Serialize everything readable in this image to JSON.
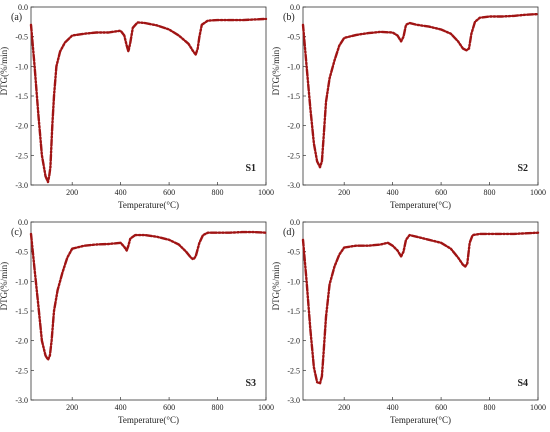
{
  "chart_data": [
    {
      "panel": "(a)",
      "sample": "S1",
      "type": "line",
      "xlabel": "Temperature(°C)",
      "ylabel": "DTG(%/min)",
      "xlim": [
        30,
        1000
      ],
      "ylim": [
        -3.0,
        0.0
      ],
      "xticks": [
        200,
        400,
        600,
        800,
        1000
      ],
      "yticks": [
        0.0,
        -0.5,
        -1.0,
        -1.5,
        -2.0,
        -2.5,
        -3.0
      ],
      "ytick_labels": [
        "0.0",
        "-0.5",
        "-1.0",
        "-1.5",
        "-2.0",
        "-2.5",
        "-3.0"
      ],
      "color": "#a01414",
      "series": [
        {
          "x": [
            30,
            45,
            60,
            75,
            90,
            100,
            105,
            110,
            118,
            125,
            135,
            150,
            170,
            200,
            250,
            300,
            350,
            400,
            415,
            425,
            432,
            440,
            450,
            470,
            500,
            550,
            600,
            640,
            680,
            700,
            710,
            718,
            725,
            735,
            760,
            800,
            900,
            1000
          ],
          "y": [
            -0.3,
            -1.0,
            -1.8,
            -2.5,
            -2.85,
            -2.95,
            -2.85,
            -2.7,
            -2.0,
            -1.5,
            -1.0,
            -0.75,
            -0.6,
            -0.48,
            -0.45,
            -0.43,
            -0.43,
            -0.4,
            -0.48,
            -0.65,
            -0.75,
            -0.6,
            -0.35,
            -0.26,
            -0.27,
            -0.31,
            -0.38,
            -0.48,
            -0.62,
            -0.75,
            -0.8,
            -0.7,
            -0.5,
            -0.3,
            -0.23,
            -0.22,
            -0.22,
            -0.2
          ]
        }
      ]
    },
    {
      "panel": "(b)",
      "sample": "S2",
      "type": "line",
      "xlabel": "Temperature(°C)",
      "ylabel": "DTG(%/min)",
      "xlim": [
        30,
        1000
      ],
      "ylim": [
        -3.0,
        0.0
      ],
      "xticks": [
        200,
        400,
        600,
        800,
        1000
      ],
      "yticks": [
        0.0,
        -0.5,
        -1.0,
        -1.5,
        -2.0,
        -2.5,
        -3.0
      ],
      "ytick_labels": [
        "0.0",
        "-0.5",
        "-1.0",
        "-1.5",
        "-2.0",
        "-2.5",
        "-3.0"
      ],
      "color": "#a01414",
      "series": [
        {
          "x": [
            30,
            45,
            60,
            75,
            88,
            100,
            108,
            115,
            125,
            140,
            160,
            180,
            200,
            250,
            300,
            350,
            400,
            420,
            435,
            445,
            455,
            470,
            500,
            550,
            600,
            640,
            670,
            690,
            705,
            715,
            725,
            740,
            760,
            800,
            850,
            900,
            950,
            1000
          ],
          "y": [
            -0.3,
            -1.0,
            -1.7,
            -2.3,
            -2.6,
            -2.7,
            -2.6,
            -2.2,
            -1.6,
            -1.2,
            -0.9,
            -0.65,
            -0.52,
            -0.47,
            -0.44,
            -0.42,
            -0.43,
            -0.48,
            -0.58,
            -0.5,
            -0.3,
            -0.27,
            -0.3,
            -0.33,
            -0.38,
            -0.45,
            -0.58,
            -0.7,
            -0.73,
            -0.7,
            -0.45,
            -0.25,
            -0.18,
            -0.16,
            -0.16,
            -0.15,
            -0.13,
            -0.12
          ]
        }
      ]
    },
    {
      "panel": "(c)",
      "sample": "S3",
      "type": "line",
      "xlabel": "Temperature(°C)",
      "ylabel": "DTG(%/min)",
      "xlim": [
        30,
        1000
      ],
      "ylim": [
        -3.0,
        0.0
      ],
      "xticks": [
        200,
        400,
        600,
        800,
        1000
      ],
      "yticks": [
        0.0,
        -0.5,
        -1.0,
        -1.5,
        -2.0,
        -2.5,
        -3.0
      ],
      "ytick_labels": [
        "0.0",
        "-0.5",
        "-1.0",
        "-1.5",
        "-2.0",
        "-2.5",
        "-3.0"
      ],
      "color": "#a01414",
      "series": [
        {
          "x": [
            30,
            45,
            60,
            75,
            90,
            100,
            108,
            115,
            125,
            140,
            160,
            180,
            200,
            250,
            300,
            350,
            400,
            415,
            425,
            432,
            440,
            460,
            500,
            550,
            600,
            640,
            670,
            690,
            700,
            710,
            725,
            740,
            760,
            800,
            850,
            900,
            950,
            1000
          ],
          "y": [
            -0.2,
            -0.8,
            -1.4,
            -2.0,
            -2.25,
            -2.32,
            -2.25,
            -2.0,
            -1.5,
            -1.15,
            -0.85,
            -0.6,
            -0.45,
            -0.4,
            -0.38,
            -0.37,
            -0.35,
            -0.42,
            -0.48,
            -0.4,
            -0.28,
            -0.22,
            -0.22,
            -0.25,
            -0.3,
            -0.38,
            -0.5,
            -0.6,
            -0.63,
            -0.58,
            -0.35,
            -0.22,
            -0.18,
            -0.18,
            -0.18,
            -0.17,
            -0.17,
            -0.18
          ]
        }
      ]
    },
    {
      "panel": "(d)",
      "sample": "S4",
      "type": "line",
      "xlabel": "Temperature(°C)",
      "ylabel": "DTG(%/min)",
      "xlim": [
        30,
        1000
      ],
      "ylim": [
        -3.0,
        0.0
      ],
      "xticks": [
        200,
        400,
        600,
        800,
        1000
      ],
      "yticks": [
        0.0,
        -0.5,
        -1.0,
        -1.5,
        -2.0,
        -2.5,
        -3.0
      ],
      "ytick_labels": [
        "0.0",
        "-0.5",
        "-1.0",
        "-1.5",
        "-2.0",
        "-2.5",
        "-3.0"
      ],
      "color": "#a01414",
      "series": [
        {
          "x": [
            30,
            45,
            60,
            75,
            88,
            100,
            108,
            115,
            125,
            140,
            160,
            180,
            200,
            250,
            300,
            350,
            380,
            400,
            420,
            435,
            445,
            455,
            470,
            500,
            550,
            600,
            640,
            670,
            690,
            700,
            708,
            718,
            730,
            760,
            800,
            900,
            1000
          ],
          "y": [
            -0.3,
            -1.0,
            -1.8,
            -2.45,
            -2.7,
            -2.72,
            -2.6,
            -2.2,
            -1.6,
            -1.05,
            -0.75,
            -0.55,
            -0.43,
            -0.4,
            -0.4,
            -0.38,
            -0.35,
            -0.4,
            -0.48,
            -0.58,
            -0.5,
            -0.3,
            -0.22,
            -0.25,
            -0.3,
            -0.35,
            -0.45,
            -0.6,
            -0.72,
            -0.75,
            -0.7,
            -0.35,
            -0.22,
            -0.2,
            -0.2,
            -0.2,
            -0.18
          ]
        }
      ]
    }
  ]
}
